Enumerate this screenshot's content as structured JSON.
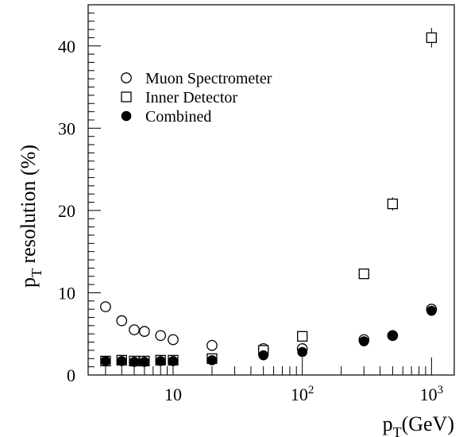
{
  "chart_data": {
    "type": "scatter",
    "x_scale": "log",
    "xlim": [
      2.2,
      1500
    ],
    "ylim": [
      0,
      45
    ],
    "xlabel": {
      "main": "p",
      "sub": "T",
      "rest": "(GeV)"
    },
    "ylabel": {
      "main": "p",
      "sub": "T",
      "rest": " resolution (%)"
    },
    "x_ticks": [
      {
        "value": 10,
        "base": "10",
        "exp": ""
      },
      {
        "value": 100,
        "base": "10",
        "exp": "2"
      },
      {
        "value": 1000,
        "base": "10",
        "exp": "3"
      }
    ],
    "y_ticks": [
      0,
      10,
      20,
      30,
      40
    ],
    "grid": false,
    "legend_position": "top-left",
    "series": [
      {
        "name": "Muon Spectrometer",
        "marker": "open-circle",
        "points": [
          {
            "x": 3,
            "y": 8.3,
            "err": 0.4
          },
          {
            "x": 4,
            "y": 6.6,
            "err": 0.3
          },
          {
            "x": 5,
            "y": 5.5,
            "err": 0.3
          },
          {
            "x": 6,
            "y": 5.3,
            "err": 0.3
          },
          {
            "x": 8,
            "y": 4.8,
            "err": 0.3
          },
          {
            "x": 10,
            "y": 4.3,
            "err": 0.3
          },
          {
            "x": 20,
            "y": 3.6,
            "err": 0.2
          },
          {
            "x": 50,
            "y": 3.2,
            "err": 0.2
          },
          {
            "x": 100,
            "y": 3.2,
            "err": 0.2
          },
          {
            "x": 300,
            "y": 4.3,
            "err": 0.2
          },
          {
            "x": 500,
            "y": 4.8,
            "err": 0.2
          },
          {
            "x": 1000,
            "y": 8.0,
            "err": 0.3
          }
        ]
      },
      {
        "name": "Inner Detector",
        "marker": "open-square",
        "points": [
          {
            "x": 3,
            "y": 1.7,
            "err": 0.2
          },
          {
            "x": 4,
            "y": 1.8,
            "err": 0.2
          },
          {
            "x": 5,
            "y": 1.7,
            "err": 0.2
          },
          {
            "x": 6,
            "y": 1.7,
            "err": 0.2
          },
          {
            "x": 8,
            "y": 1.8,
            "err": 0.2
          },
          {
            "x": 10,
            "y": 1.8,
            "err": 0.2
          },
          {
            "x": 20,
            "y": 2.0,
            "err": 0.2
          },
          {
            "x": 50,
            "y": 3.0,
            "err": 0.2
          },
          {
            "x": 100,
            "y": 4.7,
            "err": 0.3
          },
          {
            "x": 300,
            "y": 12.3,
            "err": 0.4
          },
          {
            "x": 500,
            "y": 20.8,
            "err": 0.8
          },
          {
            "x": 1000,
            "y": 41.0,
            "err": 1.2
          }
        ]
      },
      {
        "name": "Combined",
        "marker": "filled-circle",
        "points": [
          {
            "x": 3,
            "y": 1.7,
            "err": 0.2
          },
          {
            "x": 4,
            "y": 1.7,
            "err": 0.2
          },
          {
            "x": 5,
            "y": 1.6,
            "err": 0.2
          },
          {
            "x": 6,
            "y": 1.6,
            "err": 0.2
          },
          {
            "x": 8,
            "y": 1.7,
            "err": 0.2
          },
          {
            "x": 10,
            "y": 1.7,
            "err": 0.2
          },
          {
            "x": 20,
            "y": 1.8,
            "err": 0.2
          },
          {
            "x": 50,
            "y": 2.4,
            "err": 0.2
          },
          {
            "x": 100,
            "y": 2.8,
            "err": 0.2
          },
          {
            "x": 300,
            "y": 4.1,
            "err": 0.2
          },
          {
            "x": 500,
            "y": 4.8,
            "err": 0.2
          },
          {
            "x": 1000,
            "y": 7.8,
            "err": 0.3
          }
        ]
      }
    ]
  }
}
